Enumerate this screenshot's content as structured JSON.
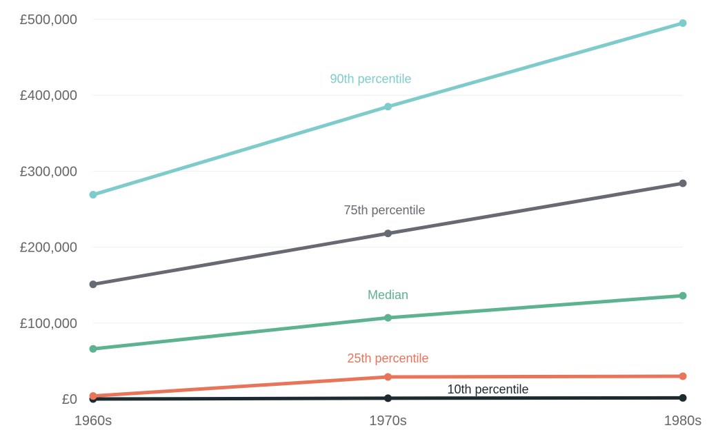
{
  "chart_data": {
    "type": "line",
    "categories": [
      "1960s",
      "1970s",
      "1980s"
    ],
    "yticks": [
      {
        "value": 0,
        "label": "£0"
      },
      {
        "value": 100000,
        "label": "£100,000"
      },
      {
        "value": 200000,
        "label": "£200,000"
      },
      {
        "value": 300000,
        "label": "£300,000"
      },
      {
        "value": 400000,
        "label": "£400,000"
      },
      {
        "value": 500000,
        "label": "£500,000"
      }
    ],
    "ylim": [
      0,
      500000
    ],
    "grid": true,
    "legend": "inline labels",
    "series": [
      {
        "name": "90th percentile",
        "color": "#7ecbcc",
        "values": [
          269000,
          385000,
          495000
        ]
      },
      {
        "name": "75th percentile",
        "color": "#676a72",
        "values": [
          151000,
          218000,
          284000
        ]
      },
      {
        "name": "Median",
        "color": "#5db390",
        "values": [
          66000,
          107000,
          136000
        ]
      },
      {
        "name": "25th percentile",
        "color": "#e8745a",
        "values": [
          4000,
          29000,
          30000
        ]
      },
      {
        "name": "10th percentile",
        "color": "#1d2b31",
        "values": [
          0,
          1000,
          1500
        ]
      }
    ]
  }
}
